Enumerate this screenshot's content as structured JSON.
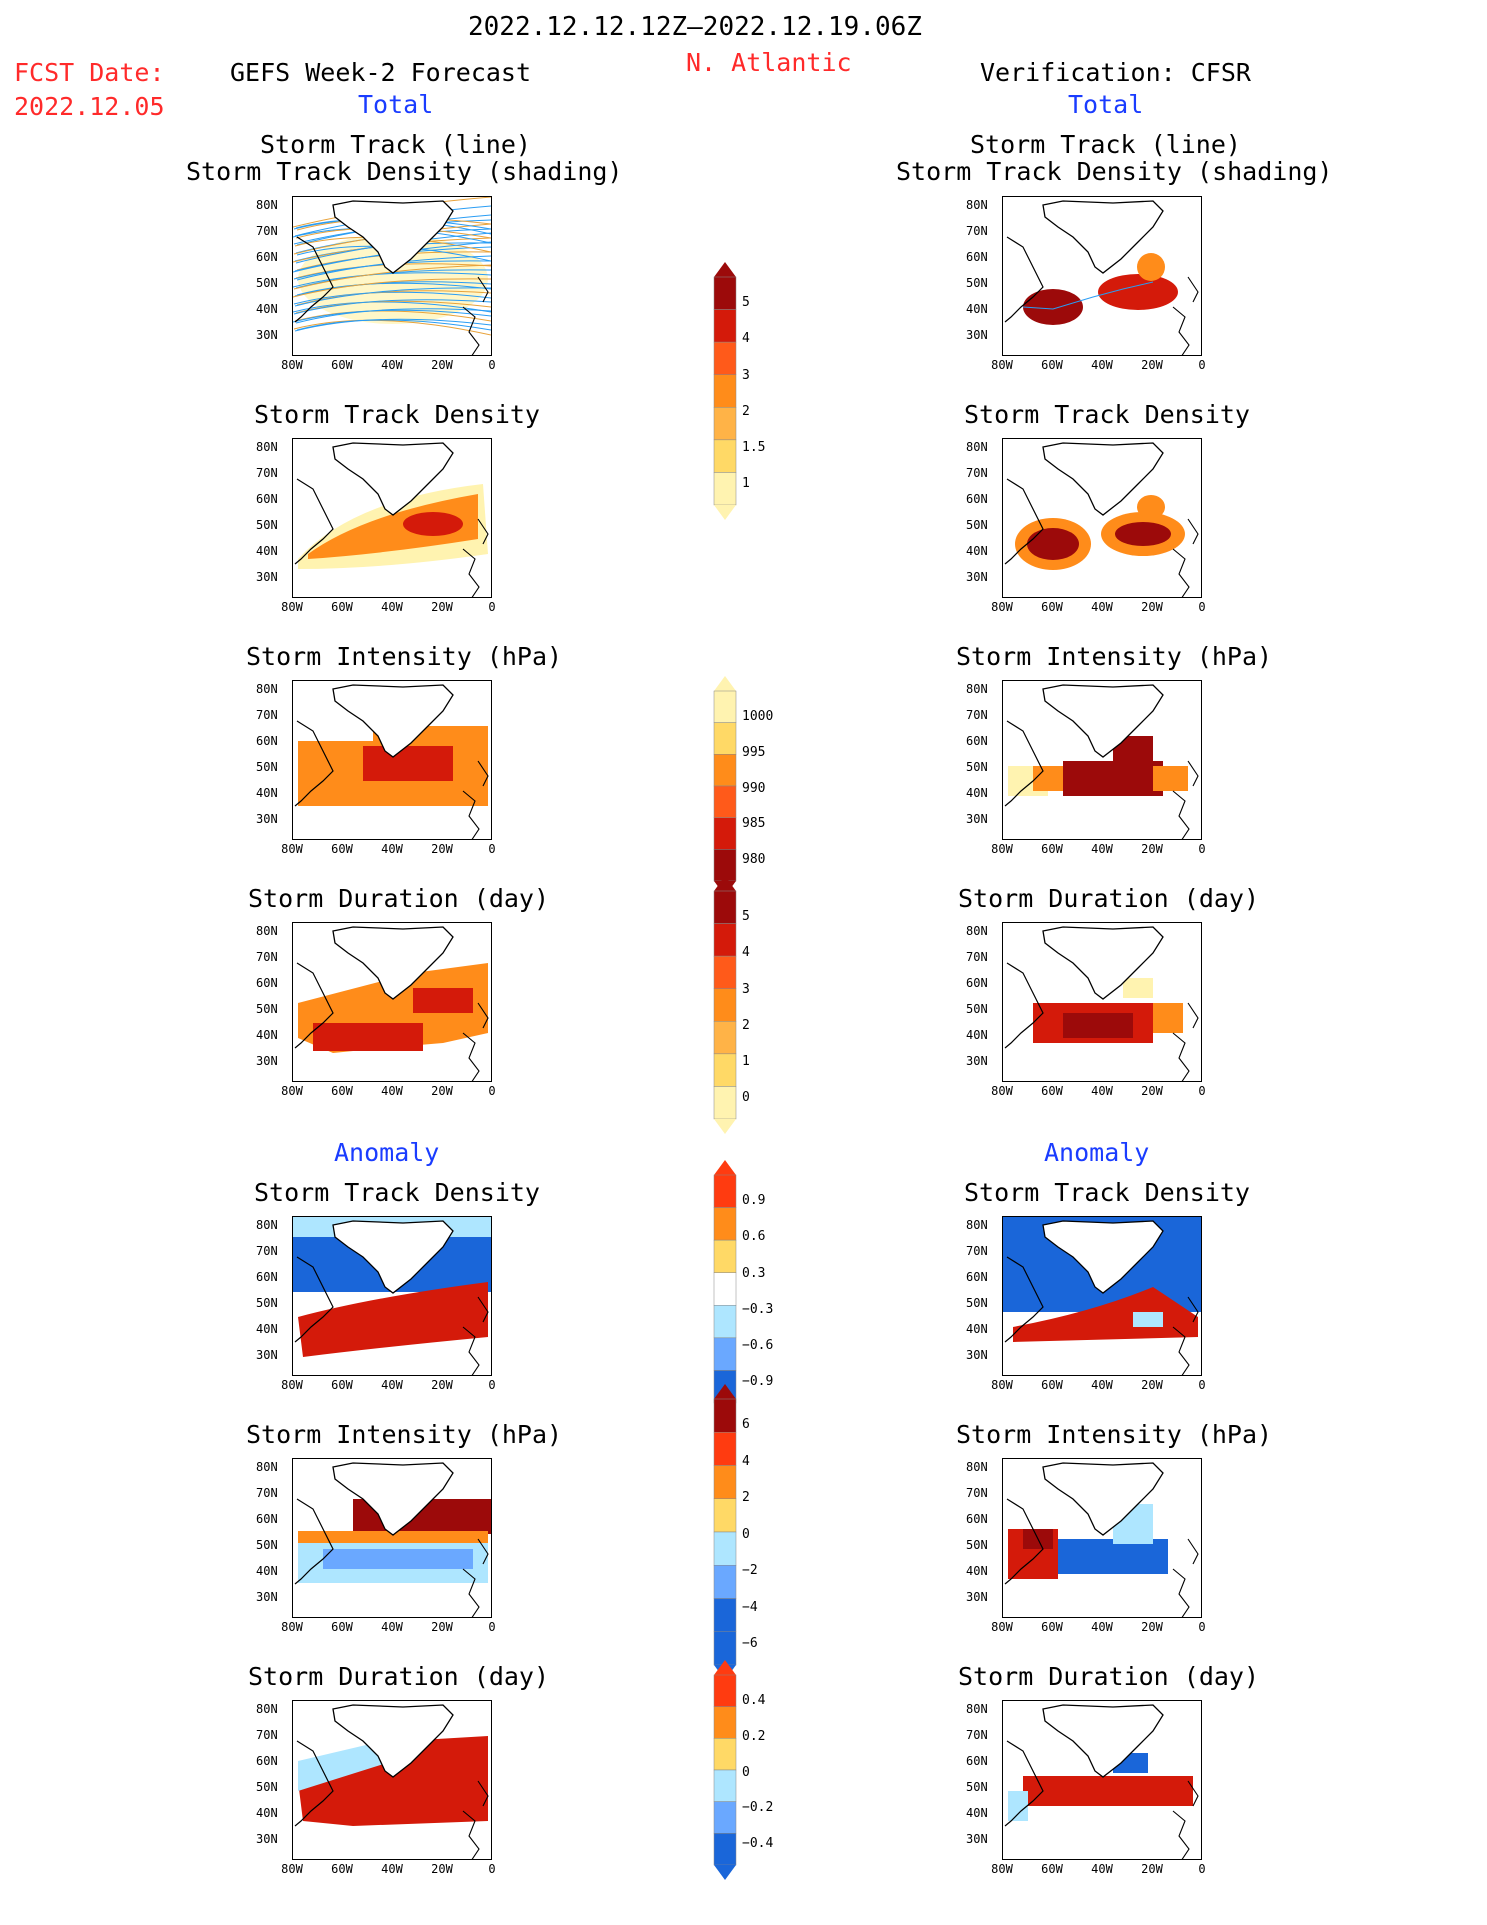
{
  "header": {
    "period": "2022.12.12.12Z—2022.12.19.06Z",
    "region": "N. Atlantic",
    "fcst_label": "FCST Date:",
    "fcst_date": "2022.12.05",
    "left_title": "GEFS Week-2 Forecast",
    "right_title": "Verification: CFSR",
    "total_label": "Total",
    "anomaly_label": "Anomaly"
  },
  "panel_titles": {
    "track_line": "Storm Track (line)",
    "track_shading": "Storm Track Density (shading)",
    "density": "Storm Track Density",
    "intensity": "Storm Intensity (hPa)",
    "duration": "Storm Duration (day)"
  },
  "axes": {
    "lat_ticks": [
      "80N",
      "70N",
      "60N",
      "50N",
      "40N",
      "30N"
    ],
    "lon_ticks": [
      "80W",
      "60W",
      "40W",
      "20W",
      "0"
    ]
  },
  "colorbars": {
    "total_density": [
      "5",
      "4",
      "3",
      "2",
      "1.5",
      "1"
    ],
    "total_intensity": [
      "1000",
      "995",
      "990",
      "985",
      "980"
    ],
    "total_duration": [
      "5",
      "4",
      "3",
      "2",
      "1",
      "0"
    ],
    "anom_density": [
      "0.9",
      "0.6",
      "0.3",
      "−0.3",
      "−0.6",
      "−0.9"
    ],
    "anom_intensity": [
      "6",
      "4",
      "2",
      "0",
      "−2",
      "−4",
      "−6"
    ],
    "anom_duration": [
      "0.4",
      "0.2",
      "0",
      "−0.2",
      "−0.4"
    ]
  },
  "colors": {
    "title_red": "#ff2a2a",
    "title_blue": "#1a3cff",
    "shade_light": "#fff3b0",
    "shade_orange": "#ff8c1a",
    "shade_red": "#d41a0a",
    "shade_darkred": "#9c0a0a",
    "anom_blue": "#1a66d9",
    "anom_lightblue": "#aee6ff"
  }
}
